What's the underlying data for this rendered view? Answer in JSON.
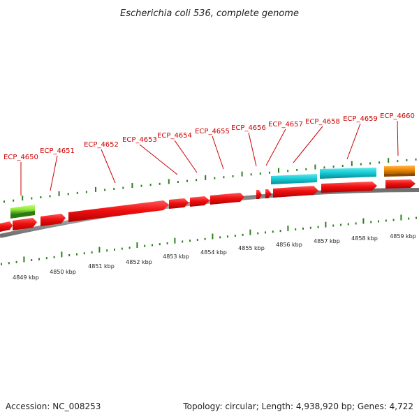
{
  "title": "Escherichia coli 536, complete genome",
  "footer": {
    "accession": "Accession: NC_008253",
    "summary": "Topology: circular; Length: 4,938,920 bp; Genes: 4,722"
  },
  "colors": {
    "label": "#cc0000",
    "leader": "#cc0000",
    "tick": "#2e7d1e",
    "backbone": "#8a8a8a",
    "cds": "#ee0a0a",
    "trna": "#12c8d2",
    "rrna": "#f28c00",
    "misc": "#8fe83a"
  },
  "scale_labels": [
    "4849 kbp",
    "4850 kbp",
    "4851 kbp",
    "4852 kbp",
    "4853 kbp",
    "4854 kbp",
    "4855 kbp",
    "4856 kbp",
    "4857 kbp",
    "4858 kbp",
    "4859 kbp"
  ],
  "gene_labels": [
    "ECP_4650",
    "ECP_4651",
    "ECP_4652",
    "ECP_4653",
    "ECP_4654",
    "ECP_4655",
    "ECP_4656",
    "ECP_4657",
    "ECP_4658",
    "ECP_4659",
    "ECP_4660"
  ]
}
